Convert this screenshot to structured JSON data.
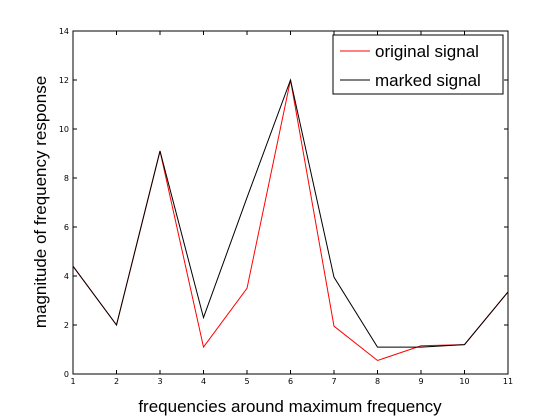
{
  "chart_data": {
    "type": "line",
    "title": "",
    "xlabel": "frequencies around maximum frequency",
    "ylabel": "magnitude of frequency response",
    "xlim": [
      1,
      11
    ],
    "ylim": [
      0,
      14
    ],
    "xticks": [
      "1",
      "2",
      "3",
      "4",
      "5",
      "6",
      "7",
      "8",
      "9",
      "10",
      "11"
    ],
    "yticks": [
      "0",
      "2",
      "4",
      "6",
      "8",
      "10",
      "12",
      "14"
    ],
    "grid": false,
    "legend_position": "top-right",
    "x": [
      1,
      2,
      3,
      4,
      5,
      6,
      7,
      8,
      9,
      10,
      11
    ],
    "series": [
      {
        "name": "original signal",
        "color": "#ff0000",
        "values": [
          4.4,
          2.0,
          9.1,
          1.1,
          3.5,
          12.0,
          1.95,
          0.55,
          1.15,
          1.2,
          3.35
        ]
      },
      {
        "name": "marked signal",
        "color": "#000000",
        "values": [
          4.4,
          2.0,
          9.1,
          2.3,
          7.2,
          12.0,
          3.95,
          1.1,
          1.1,
          1.2,
          3.35
        ]
      }
    ]
  }
}
